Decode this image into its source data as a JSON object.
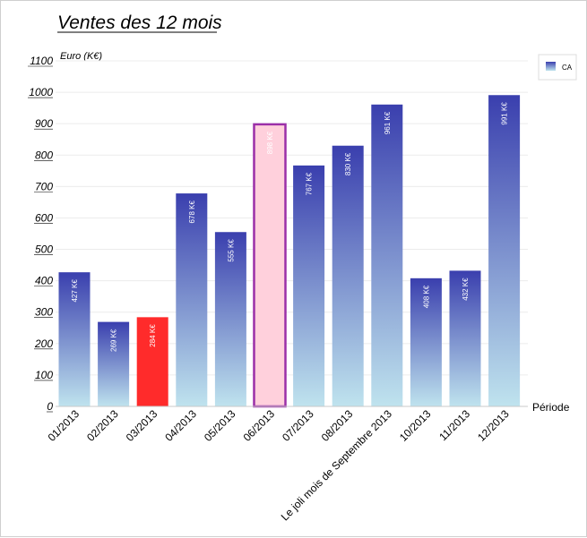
{
  "chart_data": {
    "type": "bar",
    "title": "Ventes des 12 mois",
    "ylabel": "Euro (K€)",
    "xlabel": "Période",
    "ylim": [
      0,
      1100
    ],
    "yticks": [
      0,
      100,
      200,
      300,
      400,
      500,
      600,
      700,
      800,
      900,
      1000,
      1100
    ],
    "grid": true,
    "legend_position": "top-right",
    "categories": [
      "01/2013",
      "02/2013",
      "03/2013",
      "04/2013",
      "05/2013",
      "06/2013",
      "07/2013",
      "08/2013",
      "Le joli mois de Septembre 2013",
      "10/2013",
      "11/2013",
      "12/2013"
    ],
    "series": [
      {
        "name": "CA",
        "values": [
          427,
          269,
          284,
          678,
          555,
          898,
          767,
          830,
          961,
          408,
          432,
          991
        ],
        "labels": [
          "427 K€",
          "269 K€",
          "284 K€",
          "678 K€",
          "555 K€",
          "898 K€",
          "767 K€",
          "830 K€",
          "961 K€",
          "408 K€",
          "432 K€",
          "991 K€"
        ]
      }
    ],
    "colors": {
      "gradient_top": "#3a3fae",
      "gradient_bottom": "#bfe3ee",
      "highlight_red": "#ff2b2b",
      "highlight_pink_fill": "#ffd0dc",
      "highlight_purple_border": "#9b2fa8"
    },
    "highlights": {
      "red_index": 2,
      "outlined_index": 5
    }
  }
}
